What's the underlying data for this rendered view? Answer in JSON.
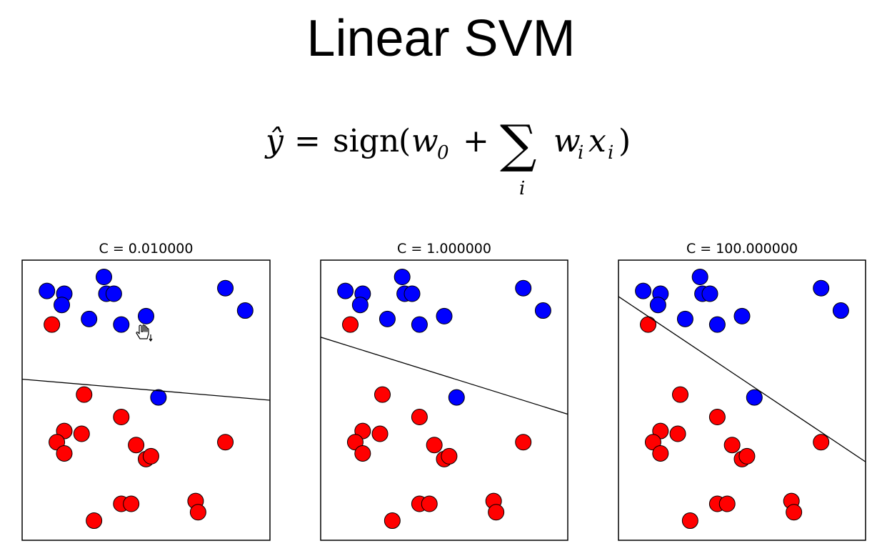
{
  "title": "Linear SVM",
  "formula": {
    "lhs": "ŷ",
    "equals": "=",
    "func": "sign",
    "open_paren": "(",
    "w": "w",
    "w_sub": "0",
    "plus": "+",
    "sum_symbol": "∑",
    "sum_index": "i",
    "term_w": "w",
    "term_w_sub": "i",
    "term_x": "x",
    "term_x_sub": "i",
    "close_paren": ")"
  },
  "colors": {
    "class_pos": "#0000ff",
    "class_neg": "#ff0000",
    "boundary": "#000000"
  },
  "icons": {
    "cursor": "hand-cursor-icon"
  },
  "chart_data": [
    {
      "type": "scatter",
      "title": "C = 0.010000",
      "xlim": [
        0,
        100
      ],
      "ylim": [
        0,
        100
      ],
      "series": [
        {
          "color": "#0000ff",
          "points": [
            [
              10,
              89
            ],
            [
              17,
              88
            ],
            [
              16,
              84
            ],
            [
              33,
              94
            ],
            [
              34,
              88
            ],
            [
              37,
              88
            ],
            [
              27,
              79
            ],
            [
              40,
              77
            ],
            [
              50,
              80
            ],
            [
              82,
              90
            ],
            [
              90,
              82
            ],
            [
              55,
              51
            ]
          ]
        },
        {
          "color": "#ff0000",
          "points": [
            [
              12,
              77
            ],
            [
              25,
              52
            ],
            [
              40,
              44
            ],
            [
              17,
              39
            ],
            [
              24,
              38
            ],
            [
              14,
              35
            ],
            [
              17,
              31
            ],
            [
              46,
              34
            ],
            [
              50,
              29
            ],
            [
              52,
              30
            ],
            [
              82,
              35
            ],
            [
              40,
              13
            ],
            [
              44,
              13
            ],
            [
              70,
              14
            ],
            [
              71,
              10
            ],
            [
              29,
              7
            ]
          ]
        }
      ],
      "boundary": [
        [
          0,
          57.5
        ],
        [
          100,
          50
        ]
      ]
    },
    {
      "type": "scatter",
      "title": "C = 1.000000",
      "xlim": [
        0,
        100
      ],
      "ylim": [
        0,
        100
      ],
      "series": [
        {
          "color": "#0000ff",
          "points": [
            [
              10,
              89
            ],
            [
              17,
              88
            ],
            [
              16,
              84
            ],
            [
              33,
              94
            ],
            [
              34,
              88
            ],
            [
              37,
              88
            ],
            [
              27,
              79
            ],
            [
              40,
              77
            ],
            [
              50,
              80
            ],
            [
              82,
              90
            ],
            [
              90,
              82
            ],
            [
              55,
              51
            ]
          ]
        },
        {
          "color": "#ff0000",
          "points": [
            [
              12,
              77
            ],
            [
              25,
              52
            ],
            [
              40,
              44
            ],
            [
              17,
              39
            ],
            [
              24,
              38
            ],
            [
              14,
              35
            ],
            [
              17,
              31
            ],
            [
              46,
              34
            ],
            [
              50,
              29
            ],
            [
              52,
              30
            ],
            [
              82,
              35
            ],
            [
              40,
              13
            ],
            [
              44,
              13
            ],
            [
              70,
              14
            ],
            [
              71,
              10
            ],
            [
              29,
              7
            ]
          ]
        }
      ],
      "boundary": [
        [
          0,
          72.5
        ],
        [
          100,
          45
        ]
      ]
    },
    {
      "type": "scatter",
      "title": "C = 100.000000",
      "xlim": [
        0,
        100
      ],
      "ylim": [
        0,
        100
      ],
      "series": [
        {
          "color": "#0000ff",
          "points": [
            [
              10,
              89
            ],
            [
              17,
              88
            ],
            [
              16,
              84
            ],
            [
              33,
              94
            ],
            [
              34,
              88
            ],
            [
              37,
              88
            ],
            [
              27,
              79
            ],
            [
              40,
              77
            ],
            [
              50,
              80
            ],
            [
              82,
              90
            ],
            [
              90,
              82
            ],
            [
              55,
              51
            ]
          ]
        },
        {
          "color": "#ff0000",
          "points": [
            [
              12,
              77
            ],
            [
              25,
              52
            ],
            [
              40,
              44
            ],
            [
              17,
              39
            ],
            [
              24,
              38
            ],
            [
              14,
              35
            ],
            [
              17,
              31
            ],
            [
              46,
              34
            ],
            [
              50,
              29
            ],
            [
              52,
              30
            ],
            [
              82,
              35
            ],
            [
              40,
              13
            ],
            [
              44,
              13
            ],
            [
              70,
              14
            ],
            [
              71,
              10
            ],
            [
              29,
              7
            ]
          ]
        }
      ],
      "boundary": [
        [
          0,
          87
        ],
        [
          100,
          28
        ]
      ]
    }
  ]
}
